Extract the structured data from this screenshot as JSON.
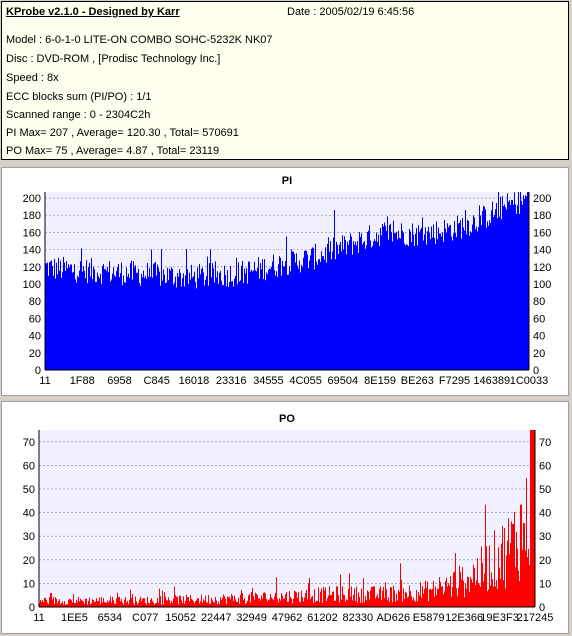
{
  "header": {
    "title": "KProbe v2.1.0 - Designed by Karr",
    "date": "Date : 2005/02/19 6:45:56"
  },
  "info_lines": [
    "Model : 6-0-1-0 LITE-ON COMBO SOHC-5232K NK07",
    "Disc : DVD-ROM ,  [Prodisc Technology Inc.]",
    "Speed : 8x",
    "ECC blocks sum (PI/PO) : 1/1",
    "Scanned range : 0 - 2304C2h",
    "PI Max= 207 , Average= 120.30 , Total= 570691",
    "PO Max= 75 , Average= 4.87 , Total= 23119"
  ],
  "chart_data": [
    {
      "type": "bar",
      "title": "PI",
      "color": "#0000ff",
      "ylim": [
        0,
        207
      ],
      "yticks": [
        0,
        20,
        40,
        60,
        80,
        100,
        120,
        140,
        160,
        180,
        200
      ],
      "xtick_labels": [
        "11",
        "1F88",
        "6958",
        "C845",
        "16018",
        "23316",
        "34555",
        "4C055",
        "69504",
        "8E159",
        "BE263",
        "F7295",
        "146389",
        "1C0033"
      ],
      "grid": true,
      "profile_x": [
        0,
        0.02,
        0.1,
        0.2,
        0.3,
        0.4,
        0.5,
        0.55,
        0.65,
        0.7,
        0.78,
        0.85,
        0.9,
        0.95,
        1.0
      ],
      "profile_y": [
        120,
        118,
        115,
        112,
        108,
        112,
        125,
        130,
        150,
        160,
        158,
        165,
        175,
        190,
        200
      ],
      "max": 207,
      "average": 120.3
    },
    {
      "type": "bar",
      "title": "PO",
      "color": "#ff0000",
      "ylim": [
        0,
        75
      ],
      "yticks": [
        0,
        10,
        20,
        30,
        40,
        50,
        60,
        70
      ],
      "xtick_labels": [
        "11",
        "1EE5",
        "6534",
        "C077",
        "15052",
        "22447",
        "32949",
        "47962",
        "61202",
        "82330",
        "AD626",
        "E5879",
        "12E366",
        "19E3F3",
        "217245"
      ],
      "grid": true,
      "profile_x": [
        0,
        0.2,
        0.4,
        0.5,
        0.6,
        0.7,
        0.8,
        0.85,
        0.9,
        0.95,
        1.0
      ],
      "profile_y": [
        3,
        3,
        4,
        5,
        6,
        6,
        8,
        12,
        18,
        28,
        45
      ],
      "max": 75,
      "average": 4.87
    }
  ]
}
